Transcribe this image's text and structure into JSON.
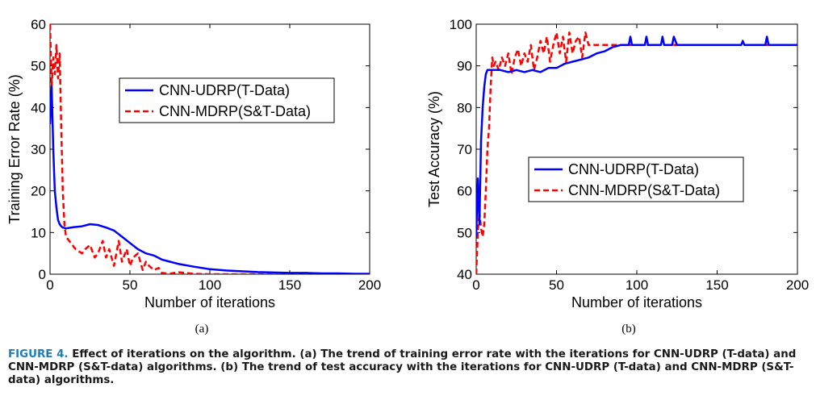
{
  "chart_data": [
    {
      "type": "line",
      "panel_label": "(a)",
      "xlabel": "Number of iterations",
      "ylabel": "Training Error Rate (%)",
      "xlim": [
        0,
        200
      ],
      "ylim": [
        0,
        60
      ],
      "xticks": [
        "0",
        "50",
        "100",
        "150",
        "200"
      ],
      "yticks": [
        "0",
        "10",
        "20",
        "30",
        "40",
        "50",
        "60"
      ],
      "legend_position": "upper-center",
      "series": [
        {
          "name": "CNN-UDRP(T-Data)",
          "color": "#0000ff",
          "style": "solid",
          "x": [
            0,
            1,
            2,
            3,
            4,
            5,
            6,
            7,
            8,
            10,
            15,
            20,
            25,
            30,
            35,
            40,
            45,
            50,
            55,
            60,
            65,
            70,
            75,
            80,
            90,
            100,
            110,
            120,
            130,
            140,
            150,
            160,
            170,
            180,
            190,
            200
          ],
          "y": [
            36,
            45,
            30,
            20,
            16,
            13,
            12,
            11.5,
            11.2,
            11,
            11.3,
            11.5,
            12,
            11.8,
            11.2,
            10.5,
            9,
            7.5,
            6,
            5,
            4.5,
            3.5,
            3,
            2.5,
            1.8,
            1.2,
            0.9,
            0.7,
            0.5,
            0.4,
            0.3,
            0.3,
            0.2,
            0.2,
            0.1,
            0.1
          ]
        },
        {
          "name": "CNN-MDRP(S&T-Data)",
          "color": "#ff0000",
          "style": "dashed",
          "x": [
            0,
            1,
            2,
            3,
            4,
            5,
            6,
            7,
            8,
            9,
            10,
            12,
            14,
            16,
            18,
            20,
            22,
            25,
            28,
            30,
            33,
            35,
            37,
            40,
            43,
            45,
            48,
            50,
            52,
            55,
            58,
            60,
            62,
            65,
            68,
            70,
            75,
            80,
            90,
            100,
            120,
            150,
            200
          ],
          "y": [
            60,
            45,
            52,
            48,
            55,
            47,
            53,
            35,
            20,
            12,
            9,
            8,
            7,
            6,
            5.5,
            5,
            6,
            7,
            4,
            5,
            8,
            4,
            6,
            2,
            8,
            3,
            6,
            2,
            4,
            5,
            1,
            3,
            2,
            1,
            1.5,
            0.3,
            0.1,
            0.5,
            0.1,
            0,
            0,
            0,
            0
          ]
        }
      ]
    },
    {
      "type": "line",
      "panel_label": "(b)",
      "xlabel": "Number of iterations",
      "ylabel": "Test Accuracy (%)",
      "xlim": [
        0,
        200
      ],
      "ylim": [
        40,
        100
      ],
      "xticks": [
        "0",
        "50",
        "100",
        "150",
        "200"
      ],
      "yticks": [
        "40",
        "50",
        "60",
        "70",
        "80",
        "90",
        "100"
      ],
      "legend_position": "lower-right",
      "series": [
        {
          "name": "CNN-UDRP(T-Data)",
          "color": "#0000ff",
          "style": "solid",
          "x": [
            0,
            1,
            2,
            3,
            4,
            5,
            6,
            7,
            8,
            10,
            15,
            20,
            25,
            30,
            35,
            40,
            45,
            50,
            55,
            60,
            65,
            70,
            75,
            80,
            85,
            90,
            95,
            96,
            97,
            100,
            105,
            106,
            107,
            110,
            115,
            116,
            117,
            120,
            122,
            123,
            125,
            130,
            140,
            150,
            160,
            165,
            166,
            167,
            170,
            180,
            181,
            182,
            190,
            200
          ],
          "y": [
            49,
            63,
            52,
            72,
            80,
            85,
            88,
            89,
            89,
            89,
            89,
            88.5,
            89,
            88.5,
            89,
            88.5,
            89.5,
            89.5,
            90.5,
            91,
            91.5,
            92,
            93,
            93.5,
            94.5,
            95,
            95,
            97,
            95,
            95,
            95,
            97,
            95,
            95,
            95,
            97,
            95,
            95,
            95,
            97,
            95,
            95,
            95,
            95,
            95,
            95,
            96,
            95,
            95,
            95,
            97,
            95,
            95,
            95
          ]
        },
        {
          "name": "CNN-MDRP(S&T-Data)",
          "color": "#ff0000",
          "style": "dashed",
          "x": [
            0,
            1,
            2,
            3,
            4,
            5,
            6,
            7,
            8,
            9,
            10,
            11,
            12,
            14,
            16,
            18,
            20,
            22,
            24,
            26,
            28,
            30,
            32,
            34,
            36,
            38,
            40,
            42,
            44,
            46,
            48,
            50,
            52,
            54,
            56,
            58,
            60,
            62,
            64,
            66,
            68,
            70,
            75,
            80,
            90,
            100,
            120,
            150,
            200
          ],
          "y": [
            40,
            50,
            55,
            51,
            49,
            52,
            60,
            70,
            75,
            85,
            92,
            90,
            91,
            89,
            92,
            90,
            93,
            88,
            92,
            94,
            90,
            93,
            91,
            95,
            89,
            92,
            96,
            93,
            97,
            91,
            95,
            98,
            93,
            97,
            91,
            98,
            93,
            96,
            97,
            92,
            98,
            95,
            95,
            95,
            95,
            95,
            95,
            95,
            95
          ]
        }
      ]
    }
  ],
  "caption": {
    "figure_label": "FIGURE 4.",
    "text": " Effect of iterations on the algorithm. (a) The trend of training error rate with the iterations for CNN-UDRP (T-data) and CNN-MDRP (S&T-data) algorithms. (b) The trend of test accuracy with the iterations for CNN-UDRP (T-data) and CNN-MDRP (S&T-data) algorithms."
  }
}
